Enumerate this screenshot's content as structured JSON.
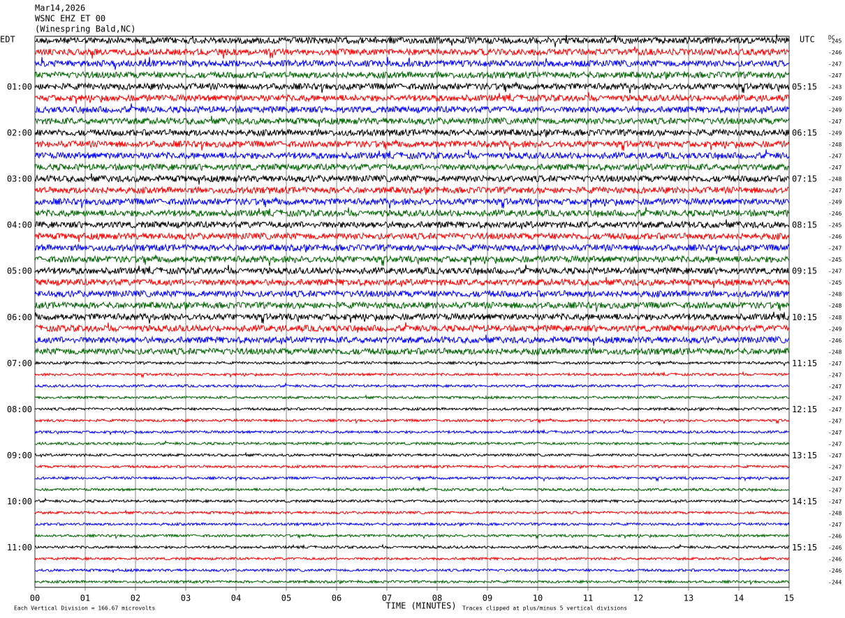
{
  "chart_data": {
    "type": "helicorder",
    "title_lines": [
      "Mar14,2026",
      "WSNC EHZ ET 00",
      "(Winespring Bald,NC)"
    ],
    "left_axis_label": "EDT",
    "right_axis_label": "UTC",
    "dc_label": "DC",
    "left_labels": [
      null,
      "01:00",
      "02:00",
      "03:00",
      "04:00",
      "05:00",
      "06:00",
      "07:00",
      "08:00",
      "09:00",
      "10:00",
      "11:00"
    ],
    "right_labels": [
      null,
      "05:15",
      "06:15",
      "07:15",
      "08:15",
      "09:15",
      "10:15",
      "11:15",
      "12:15",
      "13:15",
      "14:15",
      "15:15"
    ],
    "dc_offsets": [
      -245,
      -246,
      -247,
      -247,
      -243,
      -249,
      -249,
      -247,
      -249,
      -248,
      -247,
      -247,
      -248,
      -247,
      -249,
      -246,
      -245,
      -246,
      -247,
      -245,
      -247,
      -245,
      -248,
      -248,
      -248,
      -249,
      -246,
      -248,
      -247,
      -247,
      -247,
      -247,
      -247,
      -247,
      -247,
      -247,
      -247,
      -247,
      -247,
      -247,
      -247,
      -248,
      -247,
      -246,
      -246,
      -246,
      -246,
      -244
    ],
    "colors": [
      "#000000",
      "#ff0000",
      "#0000ff",
      "#006400"
    ],
    "xlim": [
      0,
      15
    ],
    "xticks": [
      {
        "value": 0,
        "label": "00"
      },
      {
        "value": 1,
        "label": "01"
      },
      {
        "value": 2,
        "label": "02"
      },
      {
        "value": 3,
        "label": "03"
      },
      {
        "value": 4,
        "label": "04"
      },
      {
        "value": 5,
        "label": "05"
      },
      {
        "value": 6,
        "label": "06"
      },
      {
        "value": 7,
        "label": "07"
      },
      {
        "value": 8,
        "label": "08"
      },
      {
        "value": 9,
        "label": "09"
      },
      {
        "value": 10,
        "label": "10"
      },
      {
        "value": 11,
        "label": "11"
      },
      {
        "value": 12,
        "label": "12"
      },
      {
        "value": 13,
        "label": "13"
      },
      {
        "value": 14,
        "label": "14"
      },
      {
        "value": 15,
        "label": "15"
      }
    ],
    "xlabel": "TIME (MINUTES)",
    "footnote_left": "Each Vertical Division =  166.67 microvolts",
    "footnote_right": "Traces clipped at plus/minus 5 vertical divisions"
  }
}
